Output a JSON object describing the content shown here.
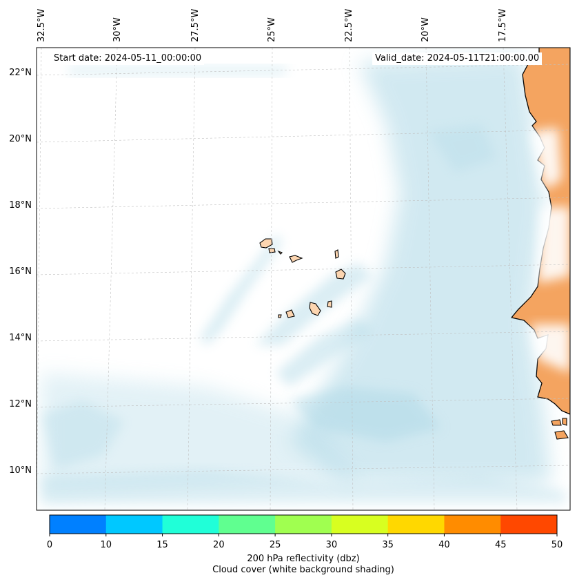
{
  "map": {
    "start_date": "Start date: 2024-05-11_00:00:00",
    "valid_date": "Valid_date: 2024-05-11T21:00:00.00",
    "lon_labels": [
      "32.5°W",
      "30°W",
      "27.5°W",
      "25°W",
      "22.5°W",
      "20°W",
      "17.5°W"
    ],
    "lat_labels": [
      "22°N",
      "20°N",
      "18°N",
      "16°N",
      "14°N",
      "12°N",
      "10°N"
    ]
  },
  "colorbar": {
    "ticks": [
      "0",
      "10",
      "15",
      "20",
      "25",
      "30",
      "35",
      "40",
      "45",
      "50"
    ],
    "colors": [
      "#0080ff",
      "#00c8ff",
      "#20ffd8",
      "#60ff90",
      "#a0ff50",
      "#d8ff20",
      "#ffd800",
      "#ff8c00",
      "#ff4800"
    ],
    "label_line1": "200 hPa reflectivity (dbz)",
    "label_line2": "Cloud cover (white background shading)"
  },
  "colors": {
    "land": "#f4a460",
    "island": "#fcd5b0",
    "cloud": "#add8e6",
    "coastline": "#000000"
  }
}
